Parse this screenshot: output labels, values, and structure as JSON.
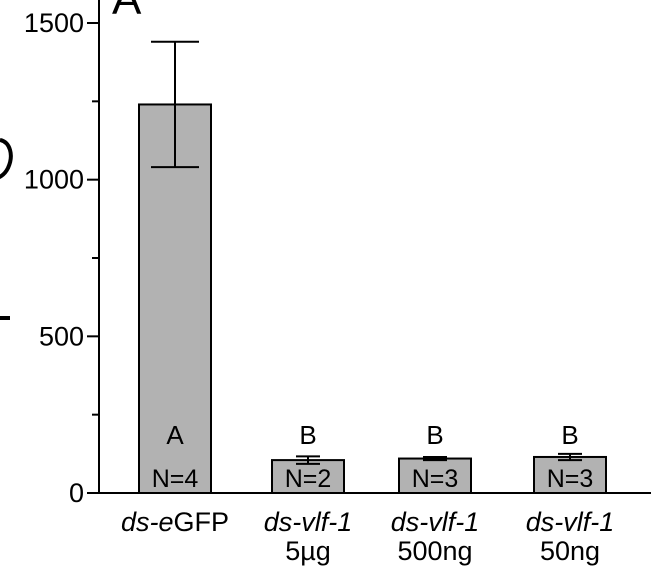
{
  "chart_data": {
    "type": "bar",
    "panel_label": "A",
    "categories": [
      {
        "line1_italic": "ds-e",
        "line1_plain": "GFP",
        "line2": ""
      },
      {
        "line1_italic": "ds-vlf-1",
        "line1_plain": "",
        "line2": "5µg"
      },
      {
        "line1_italic": "ds-vlf-1",
        "line1_plain": "",
        "line2": "500ng"
      },
      {
        "line1_italic": "ds-vlf-1",
        "line1_plain": "",
        "line2": "50ng"
      }
    ],
    "values": [
      1240,
      105,
      110,
      115
    ],
    "errors": [
      200,
      12,
      5,
      10
    ],
    "group_letters": [
      "A",
      "B",
      "B",
      "B"
    ],
    "n_labels": [
      "N=4",
      "N=2",
      "N=3",
      "N=3"
    ],
    "yticks": [
      0,
      500,
      1000,
      1500
    ],
    "ylim": [
      0,
      1500
    ],
    "bar_color": "#b2b2b2"
  }
}
